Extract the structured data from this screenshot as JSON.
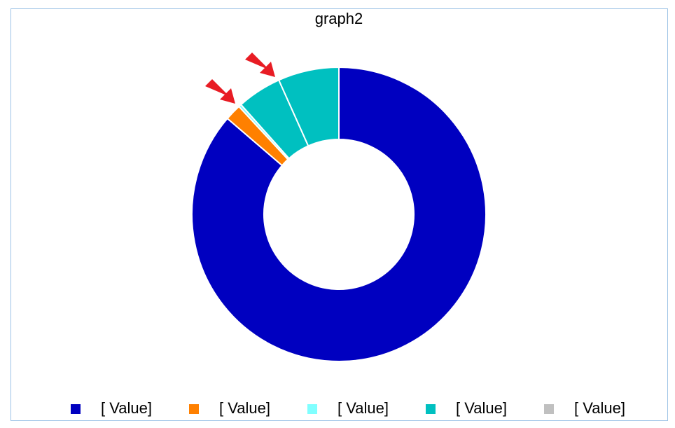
{
  "chart_data": {
    "type": "donut",
    "title": "graph2",
    "categories": [
      "[ Value]",
      "[ Value]",
      "[ Value]",
      "[ Value]",
      "[ Value]"
    ],
    "values": [
      86.3,
      1.8,
      0.3,
      4.9,
      6.7
    ],
    "slice_colors": [
      "#0000c0",
      "#ff8000",
      "#80ffff",
      "#00c0c0",
      "#00c0c0"
    ],
    "legend_colors": [
      "#0000c0",
      "#ff8000",
      "#80ffff",
      "#00c0c0",
      "#c0c0c0"
    ],
    "legend": "bottom"
  }
}
